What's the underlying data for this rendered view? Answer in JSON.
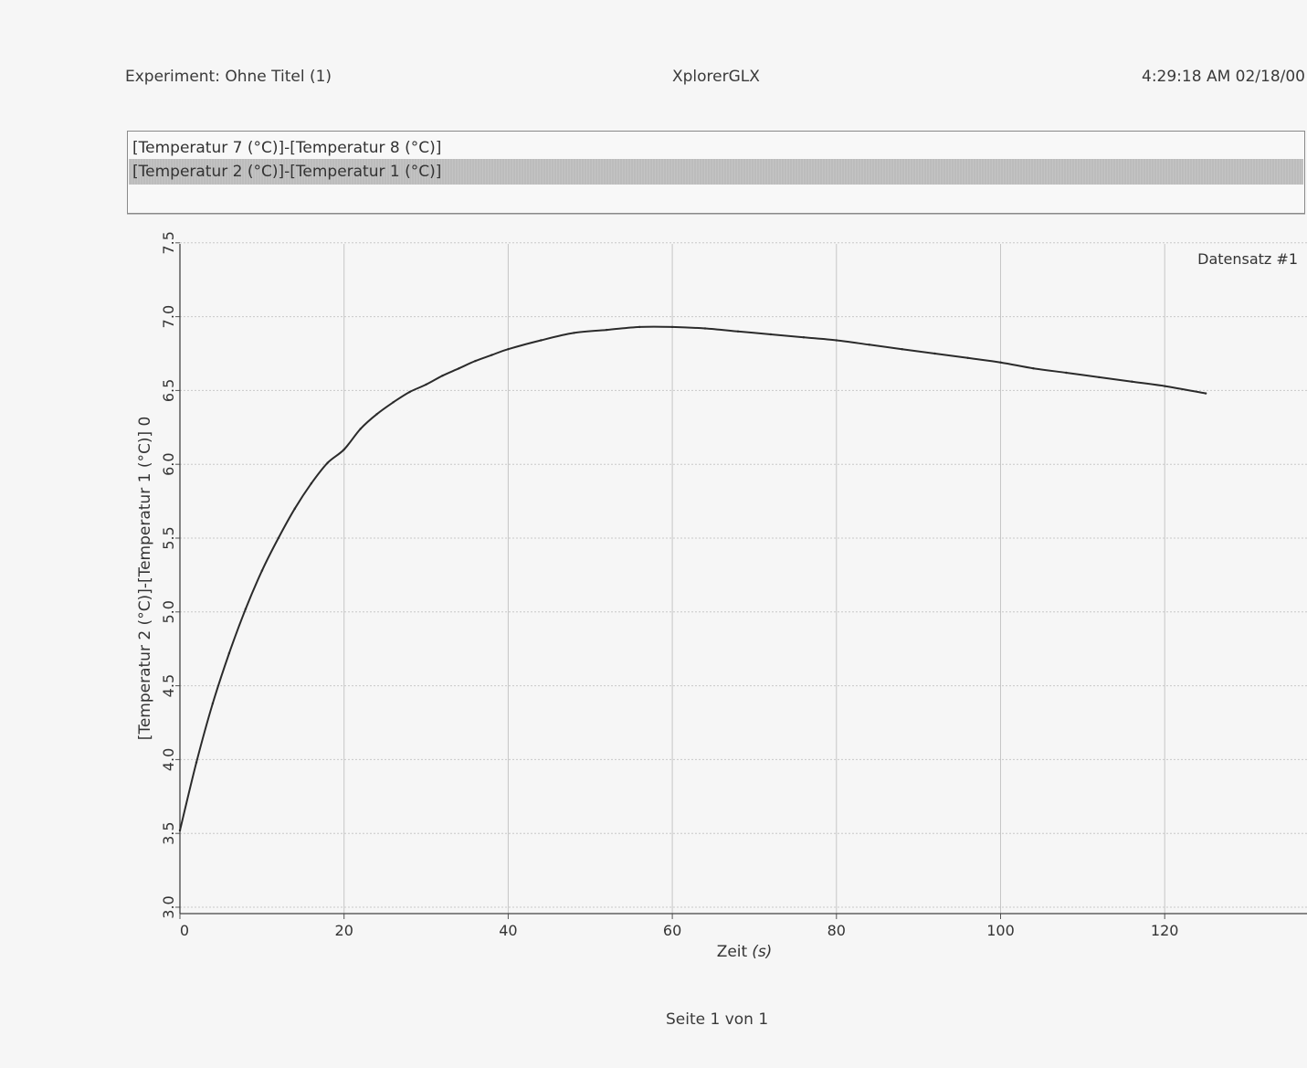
{
  "header": {
    "experiment": "Experiment: Ohne Titel (1)",
    "app_name": "XplorerGLX",
    "timestamp": "4:29:18 AM  02/18/00"
  },
  "legend": {
    "rows": [
      {
        "label": "[Temperatur 7 (°C)]-[Temperatur 8 (°C)]",
        "selected": false
      },
      {
        "label": "[Temperatur 2 (°C)]-[Temperatur 1 (°C)]",
        "selected": true
      }
    ]
  },
  "footer": {
    "page_label": "Seite 1 von 1"
  },
  "chart_data": {
    "type": "line",
    "title": "",
    "dataset_label": "Datensatz #1",
    "xlabel_main": "Zeit",
    "xlabel_unit": "(s)",
    "ylabel": "[Temperatur 2 (°C)]-[Temperatur 1 (°C)] 0",
    "xlim": [
      0,
      137
    ],
    "ylim": [
      2.95,
      7.5
    ],
    "x_ticks": [
      0,
      20,
      40,
      60,
      80,
      100,
      120
    ],
    "y_ticks": [
      "3.0",
      "3.5",
      "4.0",
      "4.5",
      "5.0",
      "5.5",
      "6.0",
      "6.5",
      "7.0",
      "7.5"
    ],
    "grid": true,
    "line_color": "#2b2b2b",
    "series": [
      {
        "name": "",
        "x": [
          0,
          2,
          4,
          6,
          8,
          10,
          12,
          14,
          16,
          18,
          20,
          22,
          24,
          26,
          28,
          30,
          32,
          34,
          36,
          38,
          40,
          44,
          48,
          52,
          56,
          60,
          64,
          68,
          72,
          76,
          80,
          84,
          88,
          92,
          96,
          100,
          104,
          108,
          112,
          116,
          120,
          125
        ],
        "y": [
          3.52,
          3.98,
          4.38,
          4.72,
          5.02,
          5.28,
          5.5,
          5.7,
          5.87,
          6.01,
          6.1,
          6.24,
          6.34,
          6.42,
          6.49,
          6.54,
          6.6,
          6.65,
          6.7,
          6.74,
          6.78,
          6.84,
          6.89,
          6.91,
          6.93,
          6.93,
          6.92,
          6.9,
          6.88,
          6.86,
          6.84,
          6.81,
          6.78,
          6.75,
          6.72,
          6.69,
          6.65,
          6.62,
          6.59,
          6.56,
          6.53,
          6.48
        ]
      }
    ]
  }
}
